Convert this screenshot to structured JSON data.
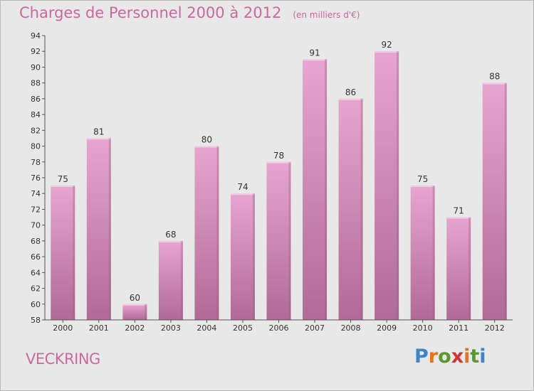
{
  "header": {
    "title": "Charges de Personnel 2000 à 2012",
    "unit": "(en milliers d'€)"
  },
  "commune": "VECKRING",
  "logo": {
    "text": "Proxiti",
    "letters": [
      "P",
      "r",
      "o",
      "x",
      "i",
      "t",
      "i"
    ],
    "colors": [
      "#3a86c8",
      "#e8731f",
      "#5a9a2c",
      "#d6332f",
      "#e8731f",
      "#5a9a2c",
      "#3a86c8"
    ]
  },
  "colors": {
    "bar_top": "#e6a6cf",
    "bar_bottom": "#b06a96",
    "title": "#c76b9c",
    "background": "#e8e8e8",
    "plot_background": "#e8e8e8"
  },
  "chart_data": {
    "type": "bar",
    "title": "Charges de Personnel 2000 à 2012",
    "subtitle": "(en milliers d'€)",
    "xlabel": "",
    "ylabel": "",
    "categories": [
      "2000",
      "2001",
      "2002",
      "2003",
      "2004",
      "2005",
      "2006",
      "2007",
      "2008",
      "2009",
      "2010",
      "2011",
      "2012"
    ],
    "values": [
      75,
      81,
      60,
      68,
      80,
      74,
      78,
      91,
      86,
      92,
      75,
      71,
      88
    ],
    "data_labels": [
      "75",
      "81",
      "60",
      "68",
      "80",
      "74",
      "78",
      "91",
      "86",
      "92",
      "75",
      "71",
      "88"
    ],
    "ylim": [
      58,
      94
    ],
    "yticks": [
      58,
      60,
      62,
      64,
      66,
      68,
      70,
      72,
      74,
      76,
      78,
      80,
      82,
      84,
      86,
      88,
      90,
      92,
      94
    ],
    "ytick_labels": [
      "58",
      "60",
      "62",
      "64",
      "66",
      "68",
      "70",
      "72",
      "74",
      "76",
      "78",
      "80",
      "82",
      "84",
      "86",
      "88",
      "90",
      "92",
      "94"
    ],
    "grid": false,
    "legend": "none"
  }
}
